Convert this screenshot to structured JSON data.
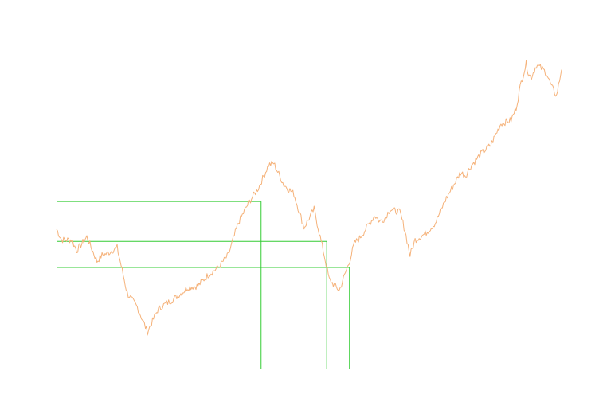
{
  "chart_data": {
    "type": "line",
    "title": "",
    "xlabel": "",
    "ylabel": "",
    "grid": false,
    "legend": "none",
    "ylim": [
      0,
      100
    ],
    "xlim": [
      0,
      100
    ],
    "series": [
      {
        "color": "#f5b27a",
        "x": [
          0,
          1,
          3,
          4,
          6,
          8,
          9,
          10,
          12,
          14,
          16,
          18,
          20,
          21,
          23,
          25,
          26,
          28,
          30,
          32,
          34,
          36,
          38,
          40,
          42,
          43,
          45,
          47,
          49,
          51,
          53,
          54,
          56,
          58,
          59,
          60,
          61,
          63,
          64,
          65,
          66,
          68,
          69,
          70,
          71,
          72,
          73,
          75,
          77,
          79,
          80,
          81,
          82,
          84,
          86,
          88,
          90,
          91,
          92,
          93,
          93.5,
          94,
          95,
          96,
          97,
          98,
          99,
          100
        ],
        "y": [
          45.5,
          42,
          42,
          38.5,
          43,
          35,
          37,
          37.5,
          39.5,
          24.5,
          20,
          12,
          19,
          20.5,
          22.5,
          25,
          26.5,
          27,
          30.5,
          33,
          37,
          47.5,
          54,
          59,
          66.5,
          67,
          60,
          57,
          46,
          52,
          37,
          29,
          25.5,
          35,
          41,
          42.5,
          45,
          50,
          48,
          49,
          52,
          51,
          45,
          37,
          42,
          43,
          44,
          47.5,
          55,
          61,
          64,
          63,
          66,
          70,
          73,
          80,
          81,
          85,
          93.5,
          99.5,
          96,
          95,
          99,
          98,
          96.5,
          92,
          89,
          97.5
        ]
      }
    ],
    "annotations": {
      "h_lines_y": [
        54.5,
        41.5,
        33
      ],
      "v_lines_x": [
        40.5,
        53.5,
        58
      ],
      "color": "#33cc33"
    }
  }
}
